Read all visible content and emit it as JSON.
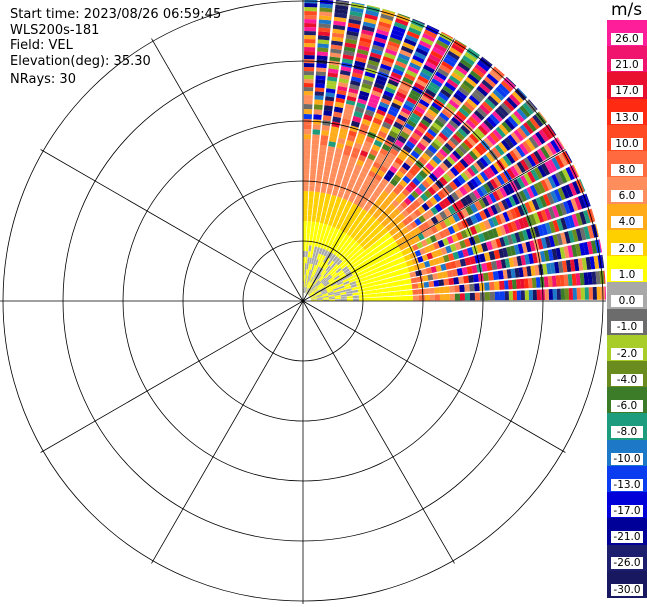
{
  "header": {
    "start_time": "Start time: 2023/08/26 06:59:45",
    "instrument": "WLS200s-181",
    "field": "Field: VEL",
    "elevation": "Elevation(deg): 35.30",
    "nrays": "NRays: 30"
  },
  "colorbar": {
    "unit": "m/s",
    "ticks": [
      "26.0",
      "21.0",
      "17.0",
      "13.0",
      "10.0",
      "8.0",
      "6.0",
      "4.0",
      "2.0",
      "1.0",
      "0.0",
      "-1.0",
      "-2.0",
      "-4.0",
      "-6.0",
      "-8.0",
      "-10.0",
      "-13.0",
      "-17.0",
      "-21.0",
      "-26.0",
      "-30.0"
    ],
    "colors": [
      "#ff1e9a",
      "#f0146e",
      "#e8102e",
      "#ff2a12",
      "#ff4a22",
      "#ff6a3e",
      "#ff8e5c",
      "#ffab1a",
      "#ffd000",
      "#ffff00",
      "#a8a8a8",
      "#6c6c6c",
      "#a8cc28",
      "#6a8c1e",
      "#3c7c28",
      "#1e9c7e",
      "#1e78c8",
      "#0a3cf0",
      "#0000d8",
      "#000098",
      "#1e1e6e",
      "#181860"
    ]
  },
  "chart_data": {
    "type": "polar-ppi",
    "sector_degrees": [
      0,
      90
    ],
    "nrays": 30,
    "elevation_deg": 35.3,
    "range_rings_count": 5,
    "spoke_interval_deg": 30,
    "description_of_values": "Velocity field shown as colored range gates; near-range values are positive (yellow/orange ~1 to 13 m/s), far-range gates noisy across full scale (-30 to 26 m/s).",
    "colorbar_range": [
      -30.0,
      26.0
    ]
  }
}
